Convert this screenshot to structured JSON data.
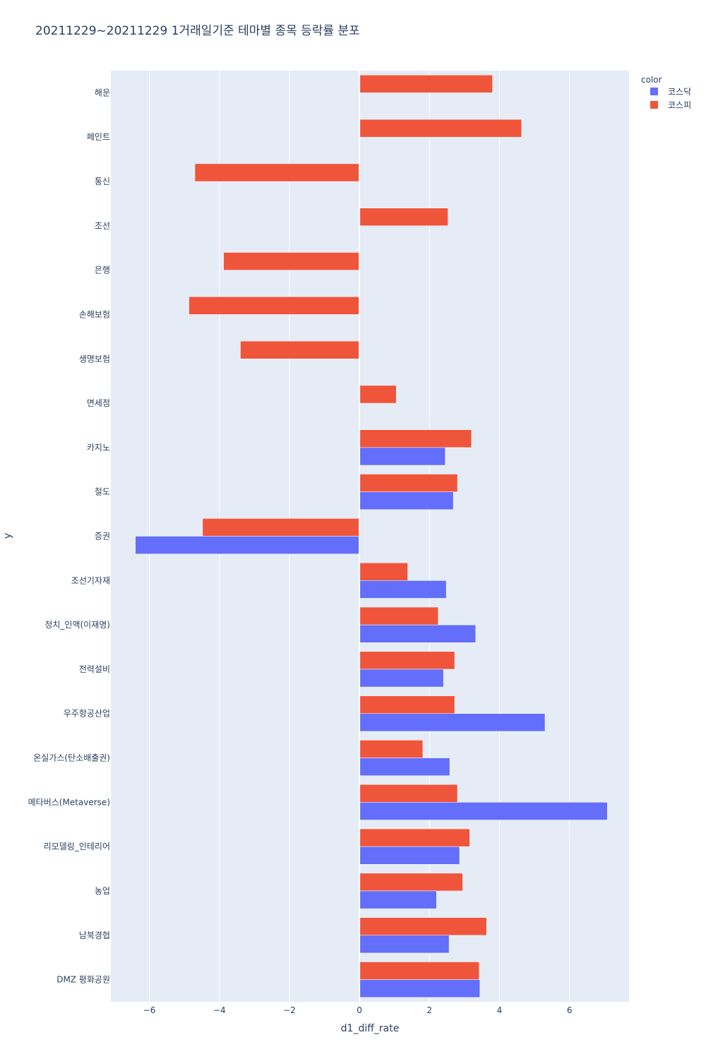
{
  "chart_data": {
    "type": "bar",
    "orientation": "horizontal",
    "title": "20211229~20211229 1거래일기준 테마별 종목 등락률 분포",
    "xlabel": "d1_diff_rate",
    "ylabel": "y",
    "xlim": [
      -7.1,
      7.7
    ],
    "xticks": [
      -6,
      -4,
      -2,
      0,
      2,
      4,
      6
    ],
    "xtick_labels": [
      "−6",
      "−4",
      "−2",
      "0",
      "2",
      "4",
      "6"
    ],
    "legend": {
      "title": "color",
      "position": "top-right"
    },
    "categories": [
      "해운",
      "페인트",
      "통신",
      "조선",
      "은행",
      "손해보험",
      "생명보험",
      "면세점",
      "카지노",
      "철도",
      "증권",
      "조선기자재",
      "정치_인맥(이재명)",
      "전력설비",
      "우주항공산업",
      "온실가스(탄소배출권)",
      "메타버스(Metaverse)",
      "리모델링_인테리어",
      "농업",
      "남북경협",
      "DMZ 평화공원"
    ],
    "series": [
      {
        "name": "코스닥",
        "color": "#636efa",
        "values": [
          null,
          null,
          null,
          null,
          null,
          null,
          null,
          null,
          2.45,
          2.68,
          -6.4,
          2.48,
          3.32,
          2.4,
          5.3,
          2.58,
          7.08,
          2.86,
          2.2,
          2.56,
          3.44
        ]
      },
      {
        "name": "코스피",
        "color": "#ef553b",
        "values": [
          3.8,
          4.63,
          -4.7,
          2.53,
          -3.88,
          -4.87,
          -3.4,
          1.05,
          3.2,
          2.8,
          -4.48,
          1.38,
          2.25,
          2.72,
          2.72,
          1.81,
          2.8,
          3.15,
          2.95,
          3.63,
          3.42
        ]
      }
    ]
  }
}
